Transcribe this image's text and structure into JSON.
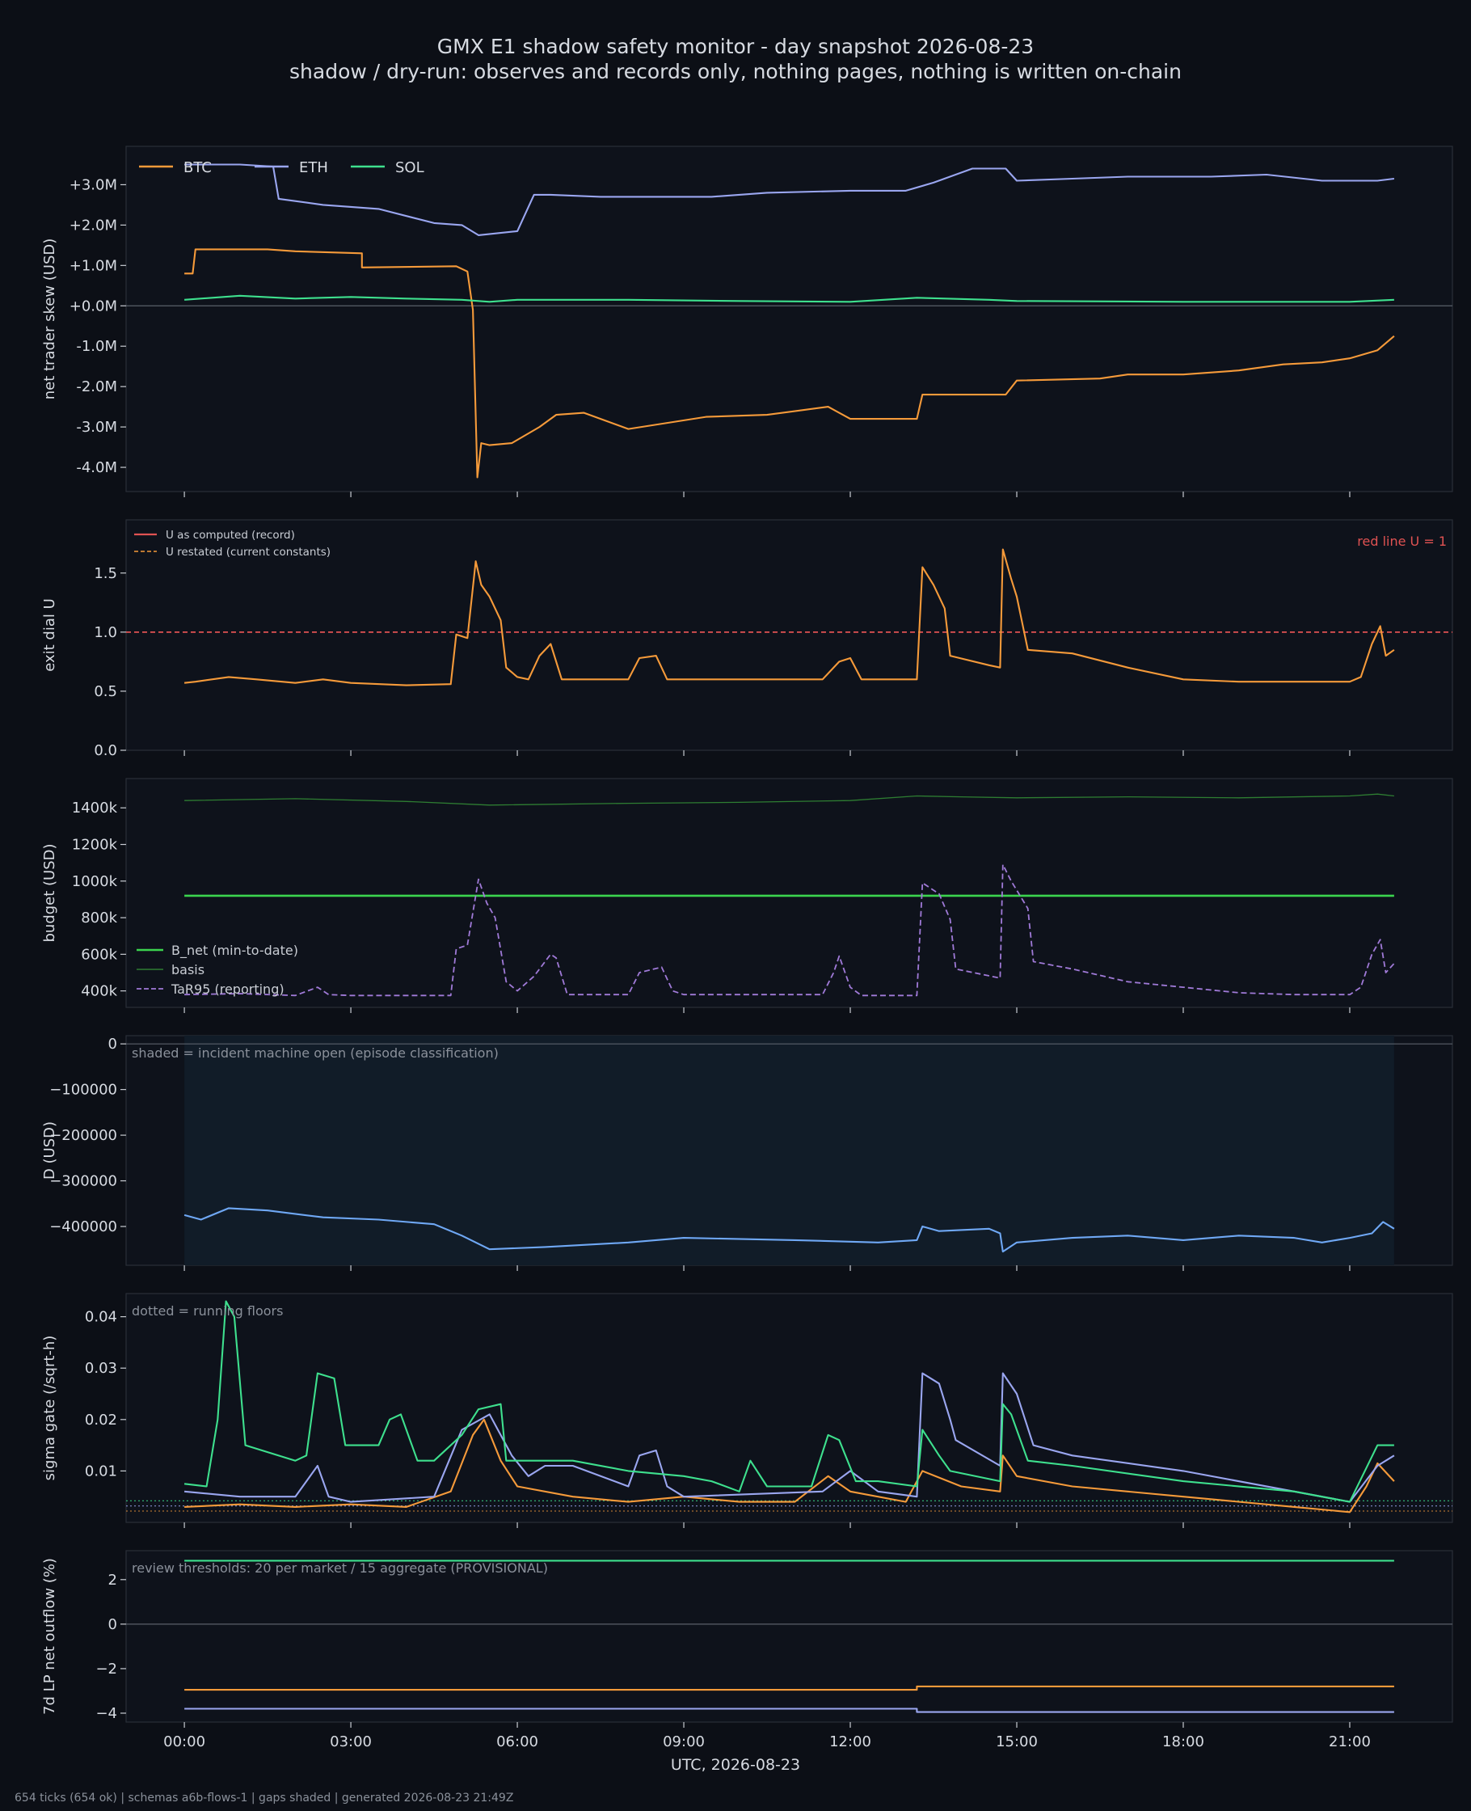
{
  "page": {
    "title": "GMX E1 shadow safety monitor - day snapshot 2026-08-23",
    "subtitle": "shadow / dry-run: observes and records only, nothing pages, nothing is written on-chain",
    "footer": "654 ticks (654 ok) | schemas a6b-flows-1 | gaps shaded | generated 2026-08-23 21:49Z",
    "xlabel": "UTC, 2026-08-23",
    "x_ticks": [
      "00:00",
      "03:00",
      "06:00",
      "09:00",
      "12:00",
      "15:00",
      "18:00",
      "21:00"
    ],
    "x_tick_hours": [
      0,
      3,
      6,
      9,
      12,
      15,
      18,
      21
    ],
    "x_range_hours": [
      -1.05,
      22.85
    ]
  },
  "colors": {
    "background": "#0c0f16",
    "panel": "#0e121b",
    "btc": "#f59a3a",
    "eth": "#9aa6f0",
    "sol": "#3ee08e",
    "redline": "#e05252",
    "bnet": "#3bd44e",
    "basis": "#2e7d32",
    "tar95": "#a07ad8",
    "drawdown": "#6fa8f5",
    "incident_shade": "#111c28"
  },
  "chart_data": [
    {
      "id": "skew",
      "type": "line",
      "ylabel": "net trader skew (USD)",
      "ylim": [
        -4.6,
        3.95
      ],
      "y_ticks": [
        -4,
        -3,
        -2,
        -1,
        0,
        1,
        2,
        3
      ],
      "y_tick_labels": [
        "-4.0M",
        "-3.0M",
        "-2.0M",
        "-1.0M",
        "+0.0M",
        "+1.0M",
        "+2.0M",
        "+3.0M"
      ],
      "zero_line": true,
      "legend": {
        "placement": "top-left",
        "entries": [
          "BTC",
          "ETH",
          "SOL"
        ]
      },
      "series": [
        {
          "name": "BTC",
          "color_key": "btc",
          "x": [
            0,
            0.15,
            0.2,
            1.5,
            2.0,
            3.2,
            3.2,
            4.9,
            5.1,
            5.2,
            5.28,
            5.35,
            5.5,
            5.9,
            6.4,
            6.7,
            7.2,
            8.0,
            9.4,
            10.5,
            11.6,
            12.0,
            13.2,
            13.3,
            14.8,
            15.0,
            16.5,
            17.0,
            18.0,
            19.0,
            19.8,
            20.5,
            21.0,
            21.5,
            21.8
          ],
          "y": [
            0.8,
            0.8,
            1.4,
            1.4,
            1.35,
            1.3,
            0.95,
            0.98,
            0.85,
            -0.1,
            -4.25,
            -3.4,
            -3.45,
            -3.4,
            -3.0,
            -2.7,
            -2.65,
            -3.05,
            -2.75,
            -2.7,
            -2.5,
            -2.8,
            -2.8,
            -2.2,
            -2.2,
            -1.85,
            -1.8,
            -1.7,
            -1.7,
            -1.6,
            -1.45,
            -1.4,
            -1.3,
            -1.1,
            -0.75
          ]
        },
        {
          "name": "ETH",
          "color_key": "eth",
          "x": [
            0,
            1.0,
            1.6,
            1.7,
            2.5,
            3.5,
            4.5,
            5.0,
            5.3,
            6.0,
            6.3,
            6.6,
            7.5,
            9.5,
            10.5,
            12.0,
            13.0,
            13.5,
            14.2,
            14.8,
            15.0,
            16.0,
            17.0,
            18.5,
            19.5,
            20.5,
            21.5,
            21.8
          ],
          "y": [
            3.5,
            3.5,
            3.45,
            2.65,
            2.5,
            2.4,
            2.05,
            2.0,
            1.75,
            1.85,
            2.75,
            2.75,
            2.7,
            2.7,
            2.8,
            2.85,
            2.85,
            3.05,
            3.4,
            3.4,
            3.1,
            3.15,
            3.2,
            3.2,
            3.25,
            3.1,
            3.1,
            3.15
          ]
        },
        {
          "name": "SOL",
          "color_key": "sol",
          "x": [
            0,
            1,
            2,
            3,
            4,
            5,
            5.5,
            6,
            8,
            10,
            12,
            13.2,
            14.5,
            15,
            18,
            21,
            21.8
          ],
          "y": [
            0.15,
            0.25,
            0.18,
            0.22,
            0.18,
            0.15,
            0.1,
            0.15,
            0.15,
            0.12,
            0.1,
            0.2,
            0.15,
            0.12,
            0.1,
            0.1,
            0.15
          ]
        }
      ]
    },
    {
      "id": "dial",
      "type": "line",
      "ylabel": "exit dial U",
      "ylim": [
        0,
        1.95
      ],
      "y_ticks": [
        0,
        0.5,
        1.0,
        1.5
      ],
      "y_tick_labels": [
        "0.0",
        "0.5",
        "1.0",
        "1.5"
      ],
      "annotation": "red line U = 1",
      "redline_value": 1.0,
      "legend": {
        "placement": "top-left",
        "entries": [
          "U as computed (record)",
          "U restated (current constants)"
        ]
      },
      "series": [
        {
          "name": "U as computed (record)",
          "color_key": "btc",
          "x": [
            0,
            0.2,
            0.8,
            1.3,
            2.0,
            2.5,
            3.0,
            4.0,
            4.8,
            4.9,
            5.1,
            5.25,
            5.35,
            5.5,
            5.7,
            5.8,
            6.0,
            6.2,
            6.4,
            6.6,
            6.8,
            7.0,
            8.0,
            8.2,
            8.5,
            8.7,
            9.5,
            10.5,
            11.5,
            11.8,
            12.0,
            12.2,
            13.0,
            13.2,
            13.3,
            13.5,
            13.7,
            13.8,
            14.5,
            14.7,
            14.75,
            14.9,
            15.0,
            15.2,
            16.0,
            17.0,
            18.0,
            19.0,
            20.0,
            21.0,
            21.2,
            21.4,
            21.55,
            21.65,
            21.8
          ],
          "y": [
            0.57,
            0.58,
            0.62,
            0.6,
            0.57,
            0.6,
            0.57,
            0.55,
            0.56,
            0.98,
            0.95,
            1.6,
            1.4,
            1.3,
            1.1,
            0.7,
            0.62,
            0.6,
            0.8,
            0.9,
            0.6,
            0.6,
            0.6,
            0.78,
            0.8,
            0.6,
            0.6,
            0.6,
            0.6,
            0.75,
            0.78,
            0.6,
            0.6,
            0.6,
            1.55,
            1.4,
            1.2,
            0.8,
            0.72,
            0.7,
            1.7,
            1.45,
            1.3,
            0.85,
            0.82,
            0.7,
            0.6,
            0.58,
            0.58,
            0.58,
            0.62,
            0.9,
            1.05,
            0.8,
            0.85
          ]
        }
      ]
    },
    {
      "id": "budget",
      "type": "line",
      "ylabel": "budget (USD)",
      "ylim": [
        310,
        1560
      ],
      "y_ticks": [
        400,
        600,
        800,
        1000,
        1200,
        1400
      ],
      "y_tick_labels": [
        "400k",
        "600k",
        "800k",
        "1000k",
        "1200k",
        "1400k"
      ],
      "legend": {
        "placement": "bottom-left",
        "entries": [
          "B_net (min-to-date)",
          "basis",
          "TaR95 (reporting)"
        ]
      },
      "series": [
        {
          "name": "B_net (min-to-date)",
          "color_key": "bnet",
          "x": [
            0,
            21.8
          ],
          "y": [
            920,
            920
          ]
        },
        {
          "name": "basis",
          "color_key": "basis",
          "x": [
            0,
            2,
            4,
            5.5,
            8,
            10,
            12,
            13.2,
            14,
            15,
            17,
            19,
            21,
            21.5,
            21.8
          ],
          "y": [
            1440,
            1450,
            1435,
            1415,
            1425,
            1430,
            1440,
            1465,
            1460,
            1455,
            1460,
            1455,
            1465,
            1475,
            1465
          ]
        },
        {
          "name": "TaR95 (reporting)",
          "color_key": "tar95",
          "x": [
            0,
            1,
            2,
            2.4,
            2.6,
            3,
            4.8,
            4.9,
            5.1,
            5.3,
            5.45,
            5.6,
            5.8,
            6.0,
            6.3,
            6.6,
            6.7,
            6.9,
            8.0,
            8.2,
            8.6,
            8.8,
            9.0,
            11.5,
            11.7,
            11.8,
            12.0,
            12.2,
            13.2,
            13.3,
            13.6,
            13.8,
            13.9,
            14.7,
            14.75,
            14.9,
            15.2,
            15.3,
            16,
            17,
            18,
            19,
            20,
            21,
            21.2,
            21.4,
            21.55,
            21.65,
            21.8
          ],
          "y": [
            380,
            385,
            375,
            420,
            380,
            375,
            375,
            630,
            650,
            1010,
            880,
            800,
            450,
            400,
            480,
            600,
            580,
            380,
            380,
            500,
            530,
            400,
            380,
            380,
            500,
            590,
            420,
            375,
            375,
            990,
            930,
            790,
            520,
            470,
            1090,
            1000,
            850,
            560,
            520,
            450,
            420,
            390,
            380,
            380,
            420,
            600,
            680,
            500,
            550
          ]
        }
      ]
    },
    {
      "id": "drawdown",
      "type": "line",
      "ylabel": "D (USD)",
      "ylim": [
        -485000,
        18000
      ],
      "y_ticks": [
        -400000,
        -300000,
        -200000,
        -100000,
        0
      ],
      "y_tick_labels": [
        "−400000",
        "−300000",
        "−200000",
        "−100000",
        "0"
      ],
      "zero_line": true,
      "annotation": "shaded = incident machine open (episode classification)",
      "shade_x": [
        0,
        21.8
      ],
      "series": [
        {
          "name": "D",
          "color_key": "drawdown",
          "x": [
            0,
            0.3,
            0.8,
            1.5,
            2.5,
            3.5,
            4.5,
            5.0,
            5.5,
            6.5,
            8.0,
            9.0,
            11.0,
            12.5,
            13.2,
            13.3,
            13.6,
            14.5,
            14.7,
            14.75,
            15.0,
            16.0,
            17.0,
            18.0,
            19.0,
            20.0,
            20.5,
            21.0,
            21.4,
            21.6,
            21.8
          ],
          "y": [
            -375000,
            -385000,
            -360000,
            -365000,
            -380000,
            -385000,
            -395000,
            -420000,
            -450000,
            -445000,
            -435000,
            -425000,
            -430000,
            -435000,
            -430000,
            -400000,
            -410000,
            -405000,
            -415000,
            -455000,
            -435000,
            -425000,
            -420000,
            -430000,
            -420000,
            -425000,
            -435000,
            -425000,
            -415000,
            -390000,
            -405000
          ]
        }
      ]
    },
    {
      "id": "sigma",
      "type": "line",
      "ylabel": "sigma gate (/sqrt-h)",
      "ylim": [
        0.0,
        0.0445
      ],
      "y_ticks": [
        0.01,
        0.02,
        0.03,
        0.04
      ],
      "y_tick_labels": [
        "0.01",
        "0.02",
        "0.03",
        "0.04"
      ],
      "annotation": "dotted = running floors",
      "floors": {
        "btc": 0.0022,
        "eth": 0.0032,
        "sol": 0.0042
      },
      "series": [
        {
          "name": "BTC",
          "color_key": "btc",
          "x": [
            0,
            1,
            2,
            3,
            4,
            4.8,
            5.2,
            5.4,
            5.7,
            6.0,
            7,
            8,
            9,
            10,
            11,
            11.6,
            12,
            13,
            13.3,
            14,
            14.7,
            14.75,
            15.0,
            16,
            18,
            20,
            21,
            21.3,
            21.5,
            21.8
          ],
          "y": [
            0.003,
            0.0035,
            0.003,
            0.0035,
            0.003,
            0.006,
            0.017,
            0.02,
            0.012,
            0.007,
            0.005,
            0.004,
            0.005,
            0.004,
            0.004,
            0.009,
            0.006,
            0.004,
            0.01,
            0.007,
            0.006,
            0.013,
            0.009,
            0.007,
            0.005,
            0.003,
            0.002,
            0.007,
            0.0115,
            0.008
          ]
        },
        {
          "name": "ETH",
          "color_key": "eth",
          "x": [
            0,
            1,
            2,
            2.4,
            2.6,
            3,
            4.5,
            5.0,
            5.5,
            5.9,
            6.2,
            6.5,
            7,
            8,
            8.2,
            8.5,
            8.7,
            9,
            11.5,
            12,
            12.5,
            13.2,
            13.3,
            13.6,
            13.8,
            13.9,
            14.7,
            14.75,
            15.0,
            15.3,
            16,
            18,
            20,
            21,
            21.5,
            21.8
          ],
          "y": [
            0.006,
            0.005,
            0.005,
            0.011,
            0.005,
            0.004,
            0.005,
            0.018,
            0.021,
            0.013,
            0.009,
            0.011,
            0.011,
            0.007,
            0.013,
            0.014,
            0.007,
            0.005,
            0.006,
            0.01,
            0.006,
            0.005,
            0.029,
            0.027,
            0.02,
            0.016,
            0.011,
            0.029,
            0.025,
            0.015,
            0.013,
            0.01,
            0.006,
            0.004,
            0.011,
            0.013
          ]
        },
        {
          "name": "SOL",
          "color_key": "sol",
          "x": [
            0,
            0.4,
            0.6,
            0.75,
            0.9,
            1.1,
            2.0,
            2.2,
            2.4,
            2.7,
            2.9,
            3.5,
            3.7,
            3.9,
            4.2,
            4.5,
            5.0,
            5.3,
            5.7,
            5.8,
            6.2,
            7,
            8,
            9,
            9.5,
            10,
            10.2,
            10.5,
            11.3,
            11.6,
            11.8,
            12.1,
            12.5,
            13.2,
            13.3,
            13.6,
            13.8,
            14.7,
            14.75,
            14.9,
            15.2,
            16,
            18,
            20,
            21,
            21.5,
            21.8
          ],
          "y": [
            0.0075,
            0.007,
            0.02,
            0.043,
            0.04,
            0.015,
            0.012,
            0.013,
            0.029,
            0.028,
            0.015,
            0.015,
            0.02,
            0.021,
            0.012,
            0.012,
            0.017,
            0.022,
            0.023,
            0.012,
            0.012,
            0.012,
            0.01,
            0.009,
            0.008,
            0.006,
            0.012,
            0.007,
            0.007,
            0.017,
            0.016,
            0.008,
            0.008,
            0.007,
            0.018,
            0.013,
            0.01,
            0.008,
            0.023,
            0.021,
            0.012,
            0.011,
            0.008,
            0.006,
            0.004,
            0.015,
            0.015
          ]
        }
      ]
    },
    {
      "id": "lp",
      "type": "line",
      "ylabel": "7d LP net outflow (%)",
      "ylim": [
        -4.4,
        3.3
      ],
      "y_ticks": [
        -4,
        -2,
        0,
        2
      ],
      "y_tick_labels": [
        "−4",
        "−2",
        "0",
        "2"
      ],
      "zero_line": true,
      "annotation": "review thresholds: 20 per market / 15 aggregate (PROVISIONAL)",
      "series": [
        {
          "name": "SOL",
          "color_key": "sol",
          "x": [
            0,
            21.8
          ],
          "y": [
            2.85,
            2.85
          ]
        },
        {
          "name": "BTC",
          "color_key": "btc",
          "x": [
            0,
            13.2,
            13.2,
            21.8
          ],
          "y": [
            -2.95,
            -2.95,
            -2.8,
            -2.8
          ]
        },
        {
          "name": "ETH",
          "color_key": "eth",
          "x": [
            0,
            13.2,
            13.2,
            21.8
          ],
          "y": [
            -3.8,
            -3.8,
            -3.95,
            -3.95
          ]
        }
      ]
    }
  ]
}
